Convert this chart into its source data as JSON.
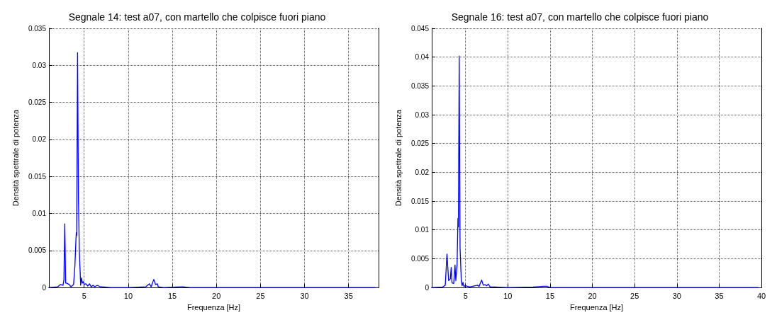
{
  "chart_data": [
    {
      "type": "line",
      "title": "Segnale 14: test a07, con martello che colpisce fuori piano",
      "xlabel": "Frequenza [Hz]",
      "ylabel": "Densità spettrale di potenza",
      "xlim": [
        1,
        38.4
      ],
      "xticks": [
        5,
        10,
        15,
        20,
        25,
        30,
        35
      ],
      "ylim": [
        0,
        0.035
      ],
      "yticks": [
        0,
        0.005,
        0.01,
        0.015,
        0.02,
        0.025,
        0.03,
        0.035
      ],
      "grid": true,
      "marker": "none",
      "line_style": "solid",
      "series": [
        {
          "color": "#0000ff",
          "x": [
            1.0,
            2.0,
            2.3,
            2.6,
            2.7,
            2.8,
            2.9,
            3.0,
            3.3,
            3.5,
            3.8,
            3.95,
            4.1,
            4.15,
            4.25,
            4.35,
            4.45,
            4.6,
            4.7,
            4.8,
            4.9,
            5.0,
            5.2,
            5.4,
            5.6,
            5.8,
            6.0,
            6.2,
            6.5,
            6.8,
            7.0,
            8,
            10,
            12,
            12.4,
            12.6,
            12.9,
            13.1,
            13.3,
            13.4,
            14,
            16.1,
            17,
            38
          ],
          "values": [
            0,
            0.0001,
            0.0004,
            0.0003,
            0.001,
            0.0086,
            0.0006,
            0.0006,
            0.0004,
            0.0001,
            0.0004,
            0.003,
            0.0074,
            0.007,
            0.0317,
            0.012,
            0.005,
            0.0003,
            0.0013,
            0.0006,
            0.0008,
            0.0004,
            0.0005,
            0.0002,
            0.0005,
            0.0001,
            0.0003,
            0.0001,
            0.0003,
            0.0001,
            0.0001,
            0,
            0,
            0.0001,
            0.0005,
            0.0001,
            0.0011,
            0.0004,
            0.0005,
            0.0001,
            0,
            0.0001,
            0,
            0
          ]
        }
      ]
    },
    {
      "type": "line",
      "title": "Segnale 16: test a07, con martello che colpisce fuori piano",
      "xlabel": "Frequenza [Hz]",
      "ylabel": "Densità spettrale di potenza",
      "xlim": [
        1,
        40
      ],
      "xticks": [
        5,
        10,
        15,
        20,
        25,
        30,
        35,
        40
      ],
      "ylim": [
        0,
        0.045
      ],
      "yticks": [
        0,
        0.005,
        0.01,
        0.015,
        0.02,
        0.025,
        0.03,
        0.035,
        0.04,
        0.045
      ],
      "grid": true,
      "marker": "none",
      "line_style": "solid",
      "series": [
        {
          "color": "#0000ff",
          "x": [
            1,
            2.3,
            2.6,
            2.8,
            2.9,
            3.0,
            3.2,
            3.3,
            3.4,
            3.6,
            3.75,
            3.85,
            4.0,
            4.1,
            4.15,
            4.25,
            4.35,
            4.5,
            4.6,
            4.7,
            4.8,
            5,
            5.5,
            6.4,
            6.6,
            6.9,
            7.1,
            7.3,
            7.5,
            7.7,
            7.9,
            8.5,
            10,
            13,
            14.3,
            14.6,
            15,
            39.6
          ],
          "values": [
            0,
            0.0001,
            0.0004,
            0.0058,
            0.0035,
            0.0012,
            0.0015,
            0.0035,
            0.0008,
            0.0007,
            0.0039,
            0.0012,
            0.004,
            0.012,
            0.0105,
            0.0402,
            0.007,
            0.001,
            0.0003,
            0.0009,
            0.0002,
            0.0003,
            0.0001,
            0.0004,
            0.0002,
            0.0013,
            0.0004,
            0.0005,
            0.0003,
            0.0006,
            0.0001,
            0.0001,
            0,
            0.0001,
            0.0002,
            0.0002,
            0,
            0
          ]
        }
      ]
    }
  ]
}
